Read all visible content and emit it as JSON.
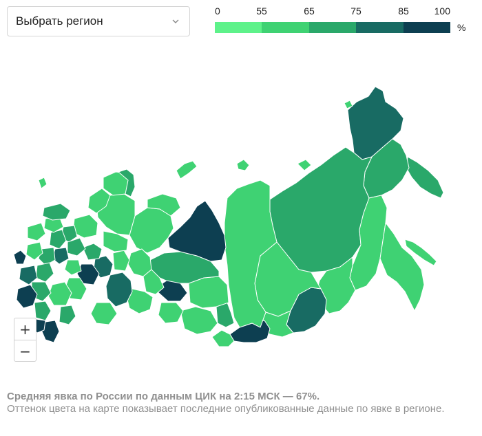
{
  "region_select": {
    "label": "Выбрать регион",
    "icon": "chevron-down-icon"
  },
  "legend": {
    "ticks": [
      "0",
      "55",
      "65",
      "75",
      "85",
      "100"
    ],
    "unit": "%",
    "colors": [
      "#5ef28a",
      "#3fd273",
      "#2aa86a",
      "#186b63",
      "#0d3f51"
    ]
  },
  "zoom": {
    "in_label": "+",
    "out_label": "−"
  },
  "caption": {
    "title": "Средняя явка по России по данным ЦИК на 2:15 МСК — 67%.",
    "text": "Оттенок цвета на карте показывает последние опубликованные данные по явке в регионе."
  }
}
